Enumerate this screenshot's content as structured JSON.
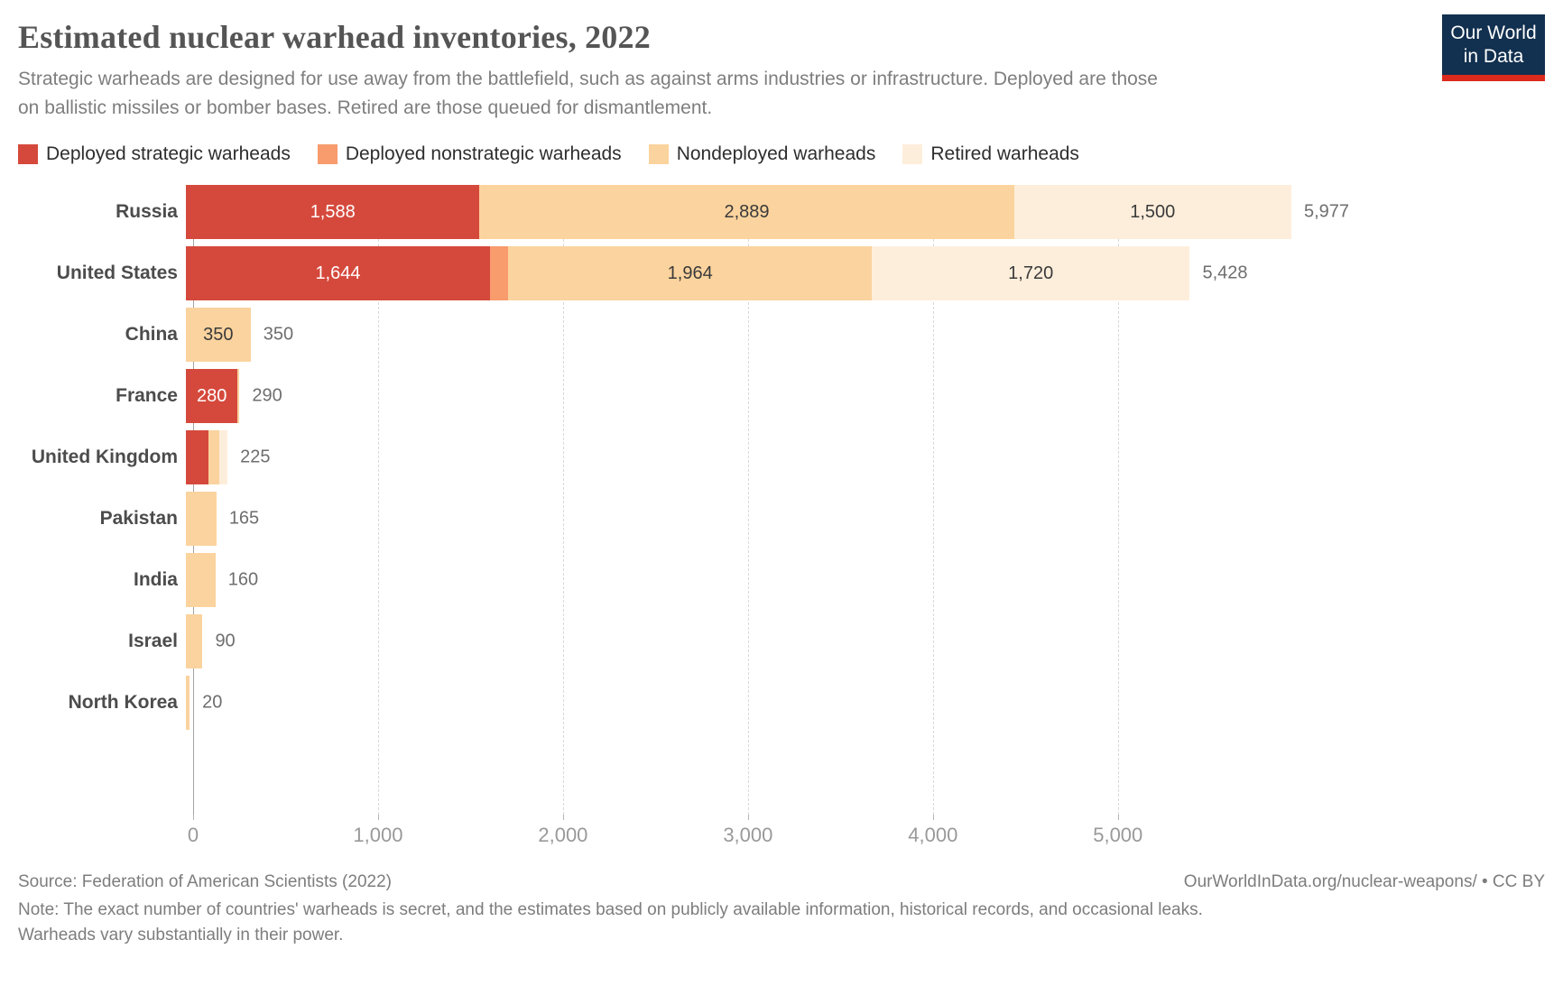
{
  "header": {
    "title": "Estimated nuclear warhead inventories, 2022",
    "subtitle": "Strategic warheads are designed for use away from the battlefield, such as against arms industries or infrastructure. Deployed are those on ballistic missiles or bomber bases. Retired are those queued for dismantlement.",
    "logo": {
      "line1": "Our World",
      "line2": "in Data",
      "bg_color": "#12304f",
      "accent_color": "#dc2a1c"
    }
  },
  "chart_data": {
    "type": "bar",
    "orientation": "horizontal",
    "stacked": true,
    "title": "Estimated nuclear warhead inventories, 2022",
    "categories": [
      "Russia",
      "United States",
      "China",
      "France",
      "United Kingdom",
      "Pakistan",
      "India",
      "Israel",
      "North Korea"
    ],
    "series": [
      {
        "name": "Deployed strategic warheads",
        "color": "#d5493c",
        "label_text_color": "#ffffff",
        "values": [
          1588,
          1644,
          0,
          280,
          120,
          0,
          0,
          0,
          0
        ]
      },
      {
        "name": "Deployed nonstrategic warheads",
        "color": "#f89b6d",
        "label_text_color": "#3a3a3a",
        "values": [
          0,
          100,
          0,
          0,
          0,
          0,
          0,
          0,
          0
        ]
      },
      {
        "name": "Nondeployed warheads",
        "color": "#fbd39e",
        "label_text_color": "#3a3a3a",
        "values": [
          2889,
          1964,
          350,
          10,
          60,
          165,
          160,
          90,
          20
        ]
      },
      {
        "name": "Retired warheads",
        "color": "#fdeedb",
        "label_text_color": "#3a3a3a",
        "values": [
          1500,
          1720,
          0,
          0,
          45,
          0,
          0,
          0,
          0
        ]
      }
    ],
    "totals": [
      "5,977",
      "5,428",
      "350",
      "290",
      "225",
      "165",
      "160",
      "90",
      "20"
    ],
    "xlim": [
      0,
      5977
    ],
    "x_ticks": [
      0,
      1000,
      2000,
      3000,
      4000,
      5000
    ],
    "x_tick_labels": [
      "0",
      "1,000",
      "2,000",
      "3,000",
      "4,000",
      "5,000"
    ],
    "grid": "vertical-dashed",
    "legend_position": "top"
  },
  "footer": {
    "source": "Source: Federation of American Scientists (2022)",
    "license": "OurWorldInData.org/nuclear-weapons/ • CC BY",
    "note": "Note: The exact number of countries' warheads is secret, and the estimates based on publicly available information, historical records, and occasional leaks. Warheads vary substantially in their power."
  }
}
